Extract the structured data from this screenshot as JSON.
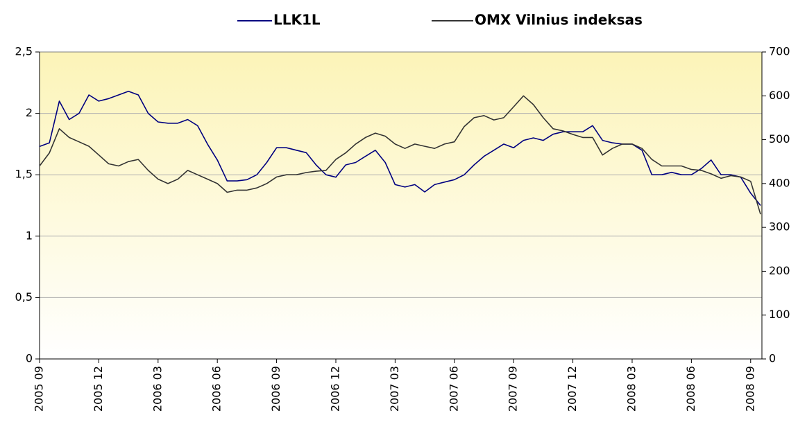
{
  "chart_data": {
    "type": "line",
    "categories": [
      "2005 09",
      null,
      null,
      null,
      null,
      null,
      "2005 12",
      null,
      null,
      null,
      null,
      null,
      "2006 03",
      null,
      null,
      null,
      null,
      null,
      "2006 06",
      null,
      null,
      null,
      null,
      null,
      "2006 09",
      null,
      null,
      null,
      null,
      null,
      "2006 12",
      null,
      null,
      null,
      null,
      null,
      "2007 03",
      null,
      null,
      null,
      null,
      null,
      "2007 06",
      null,
      null,
      null,
      null,
      null,
      "2007 09",
      null,
      null,
      null,
      null,
      null,
      "2007 12",
      null,
      null,
      null,
      null,
      null,
      "2008 03",
      null,
      null,
      null,
      null,
      null,
      "2008 06",
      null,
      null,
      null,
      null,
      null,
      "2008 09",
      null
    ],
    "series": [
      {
        "name": "LLK1L",
        "color": "#000080",
        "axis": "y",
        "values": [
          1.73,
          1.76,
          2.1,
          1.95,
          2.0,
          2.15,
          2.1,
          2.12,
          2.15,
          2.18,
          2.15,
          2.0,
          1.93,
          1.92,
          1.92,
          1.95,
          1.9,
          1.75,
          1.62,
          1.45,
          1.45,
          1.46,
          1.5,
          1.6,
          1.72,
          1.72,
          1.7,
          1.68,
          1.58,
          1.5,
          1.48,
          1.58,
          1.6,
          1.65,
          1.7,
          1.6,
          1.42,
          1.4,
          1.42,
          1.36,
          1.42,
          1.44,
          1.46,
          1.5,
          1.58,
          1.65,
          1.7,
          1.75,
          1.72,
          1.78,
          1.8,
          1.78,
          1.83,
          1.85,
          1.85,
          1.85,
          1.9,
          1.78,
          1.76,
          1.75,
          1.75,
          1.7,
          1.5,
          1.5,
          1.52,
          1.5,
          1.5,
          1.55,
          1.62,
          1.5,
          1.5,
          1.48,
          1.35,
          1.25
        ]
      },
      {
        "name": "OMX Vilnius indeksas",
        "color": "#333333",
        "axis": "y2",
        "values": [
          440,
          470,
          525,
          505,
          495,
          485,
          465,
          445,
          440,
          450,
          455,
          430,
          410,
          400,
          410,
          430,
          420,
          410,
          400,
          380,
          385,
          385,
          390,
          400,
          415,
          420,
          420,
          425,
          428,
          430,
          455,
          470,
          490,
          505,
          515,
          508,
          490,
          480,
          490,
          485,
          480,
          490,
          495,
          530,
          550,
          555,
          545,
          550,
          575,
          600,
          580,
          550,
          525,
          520,
          512,
          505,
          505,
          465,
          480,
          490,
          490,
          480,
          455,
          440,
          440,
          440,
          432,
          430,
          422,
          412,
          418,
          415,
          405,
          330
        ]
      }
    ],
    "ylim": [
      0,
      2.5
    ],
    "yticks": [
      0,
      {
        "value": 0.5,
        "label": "0,5"
      },
      1,
      {
        "value": 1.5,
        "label": "1,5"
      },
      2,
      {
        "value": 2.5,
        "label": "2,5"
      }
    ],
    "y2lim": [
      0,
      700
    ],
    "y2ticks": [
      0,
      100,
      200,
      300,
      400,
      500,
      600,
      700
    ],
    "grid": true,
    "legend": "top"
  }
}
